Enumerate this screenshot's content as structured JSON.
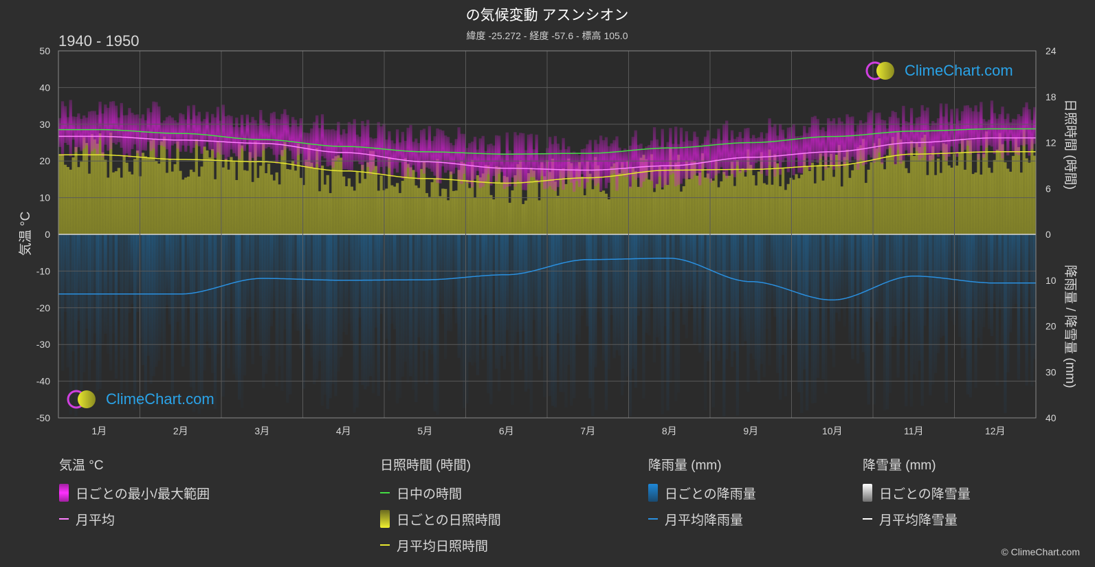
{
  "header": {
    "title": "の気候変動 アスンシオン",
    "subtitle": "緯度 -25.272 - 経度 -57.6 - 標高 105.0",
    "period": "1940 - 1950"
  },
  "brand": {
    "logo_text": "ClimeChart.com",
    "copyright": "© ClimeChart.com"
  },
  "legend": [
    {
      "heading": "気温 °C",
      "items": [
        {
          "label": "日ごとの最小/最大範囲",
          "kind": "bar",
          "color": "#d020d0"
        },
        {
          "label": "月平均",
          "kind": "line",
          "color": "#ff80ff"
        }
      ]
    },
    {
      "heading": "日照時間 (時間)",
      "items": [
        {
          "label": "日中の時間",
          "kind": "line",
          "color": "#44dd44"
        },
        {
          "label": "日ごとの日照時間",
          "kind": "bar",
          "color": "#c8c832"
        },
        {
          "label": "月平均日照時間",
          "kind": "line",
          "color": "#e8e830"
        }
      ]
    },
    {
      "heading": "降雨量 (mm)",
      "items": [
        {
          "label": "日ごとの降雨量",
          "kind": "bar",
          "color": "#1e88d8"
        },
        {
          "label": "月平均降雨量",
          "kind": "line",
          "color": "#2a90e0"
        }
      ]
    },
    {
      "heading": "降雪量 (mm)",
      "items": [
        {
          "label": "日ごとの降雪量",
          "kind": "bar",
          "color": "#e0e0e0"
        },
        {
          "label": "月平均降雪量",
          "kind": "line",
          "color": "#ffffff"
        }
      ]
    }
  ],
  "chart_data": {
    "type": "line",
    "categories": [
      "1月",
      "2月",
      "3月",
      "4月",
      "5月",
      "6月",
      "7月",
      "8月",
      "9月",
      "10月",
      "11月",
      "12月"
    ],
    "y_left": {
      "label": "気温 °C",
      "range": [
        -50,
        50
      ],
      "ticks": [
        50,
        40,
        30,
        20,
        10,
        0,
        -10,
        -20,
        -30,
        -40,
        -50
      ]
    },
    "y_right_top": {
      "label": "日照時間 (時間)",
      "range": [
        0,
        24
      ],
      "ticks": [
        24,
        18,
        12,
        6,
        0
      ]
    },
    "y_right_bottom": {
      "label": "降雨量 / 降雪量 (mm)",
      "range": [
        0,
        40
      ],
      "ticks": [
        0,
        10,
        20,
        30,
        40
      ]
    },
    "grid": true,
    "series": [
      {
        "name": "日中の時間",
        "axis": "sunshine",
        "color": "#44dd44",
        "values": [
          13.7,
          13.2,
          12.4,
          11.5,
          10.8,
          10.5,
          10.6,
          11.3,
          12.0,
          12.8,
          13.5,
          13.8
        ]
      },
      {
        "name": "月平均",
        "axis": "temperature",
        "color": "#ff80ff",
        "values": [
          26.7,
          25.7,
          24.8,
          22.3,
          19.8,
          18.0,
          17.5,
          18.7,
          21.0,
          22.5,
          25.0,
          26.3
        ]
      },
      {
        "name": "月平均日照時間",
        "axis": "sunshine",
        "color": "#e8e830",
        "values": [
          10.4,
          9.8,
          9.5,
          8.3,
          7.3,
          6.7,
          7.4,
          8.4,
          8.5,
          9.0,
          10.5,
          10.8
        ]
      },
      {
        "name": "月平均降雨量",
        "axis": "rain",
        "color": "#2a90e0",
        "values": [
          13.0,
          13.0,
          9.6,
          10.0,
          9.9,
          8.8,
          5.5,
          5.2,
          10.3,
          14.3,
          9.1,
          10.6
        ]
      },
      {
        "name": "日ごとの最小/最大範囲",
        "axis": "temperature",
        "color": "#d020d0",
        "min": [
          23.5,
          23.0,
          22.0,
          19.5,
          16.5,
          14.5,
          14.0,
          15.0,
          17.5,
          19.5,
          21.5,
          23.0
        ],
        "max": [
          34.0,
          33.0,
          32.0,
          29.5,
          27.0,
          25.0,
          24.5,
          26.5,
          28.5,
          30.0,
          32.5,
          33.5
        ]
      }
    ]
  }
}
